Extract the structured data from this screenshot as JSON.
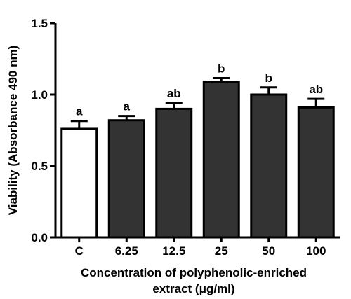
{
  "chart_data": {
    "type": "bar",
    "categories": [
      "C",
      "6.25",
      "12.5",
      "25",
      "50",
      "100"
    ],
    "values": [
      0.76,
      0.82,
      0.9,
      1.09,
      1.0,
      0.91
    ],
    "errors": [
      0.055,
      0.03,
      0.04,
      0.025,
      0.05,
      0.06
    ],
    "significance_labels": [
      "a",
      "a",
      "ab",
      "b",
      "b",
      "ab"
    ],
    "bar_colors": [
      "#ffffff",
      "#333333",
      "#333333",
      "#333333",
      "#333333",
      "#333333"
    ],
    "ylabel": "Viability (Absorbance 490 nm)",
    "xlabel_line1": "Concentration of polyphenolic-enriched",
    "xlabel_line2": "extract (μg/ml)",
    "ylim": [
      0.0,
      1.5
    ],
    "yticks": [
      "0.0",
      "0.5",
      "1.0",
      "1.5"
    ],
    "ytick_values": [
      0.0,
      0.5,
      1.0,
      1.5
    ],
    "grid": false
  }
}
